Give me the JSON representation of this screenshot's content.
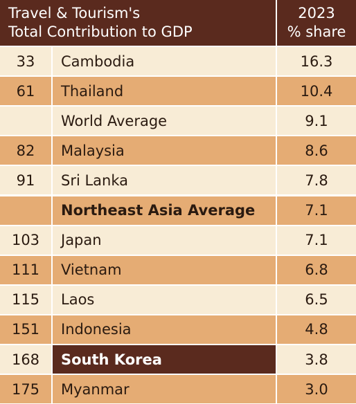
{
  "chart_data": {
    "type": "table",
    "title": "Travel & Tourism's Total Contribution to GDP",
    "title_lines": [
      "Travel & Tourism's",
      "Total Contribution to GDP"
    ],
    "columns": [
      "",
      "",
      "2023 % share"
    ],
    "share_header_lines": [
      "2023",
      "% share"
    ],
    "rows": [
      {
        "rank": "33",
        "country": "Cambodia",
        "share": "16.3"
      },
      {
        "rank": "61",
        "country": "Thailand",
        "share": "10.4"
      },
      {
        "rank": "",
        "country": "World Average",
        "share": "9.1"
      },
      {
        "rank": "82",
        "country": "Malaysia",
        "share": "8.6"
      },
      {
        "rank": "91",
        "country": "Sri Lanka",
        "share": "7.8"
      },
      {
        "rank": "",
        "country": "Northeast Asia Average",
        "share": "7.1"
      },
      {
        "rank": "103",
        "country": "Japan",
        "share": "7.1"
      },
      {
        "rank": "111",
        "country": "Vietnam",
        "share": "6.8"
      },
      {
        "rank": "115",
        "country": "Laos",
        "share": "6.5"
      },
      {
        "rank": "151",
        "country": "Indonesia",
        "share": "4.8"
      },
      {
        "rank": "168",
        "country": "South Korea",
        "share": "3.8"
      },
      {
        "rank": "175",
        "country": "Myanmar",
        "share": "3.0"
      }
    ],
    "highlighted_row": "South Korea",
    "bold_row": "Northeast Asia Average"
  },
  "colors": {
    "header_bg": "#5a2a1e",
    "row_light": "#f8ecd6",
    "row_dark": "#e5ac74",
    "highlight": "#5a2a1e"
  }
}
